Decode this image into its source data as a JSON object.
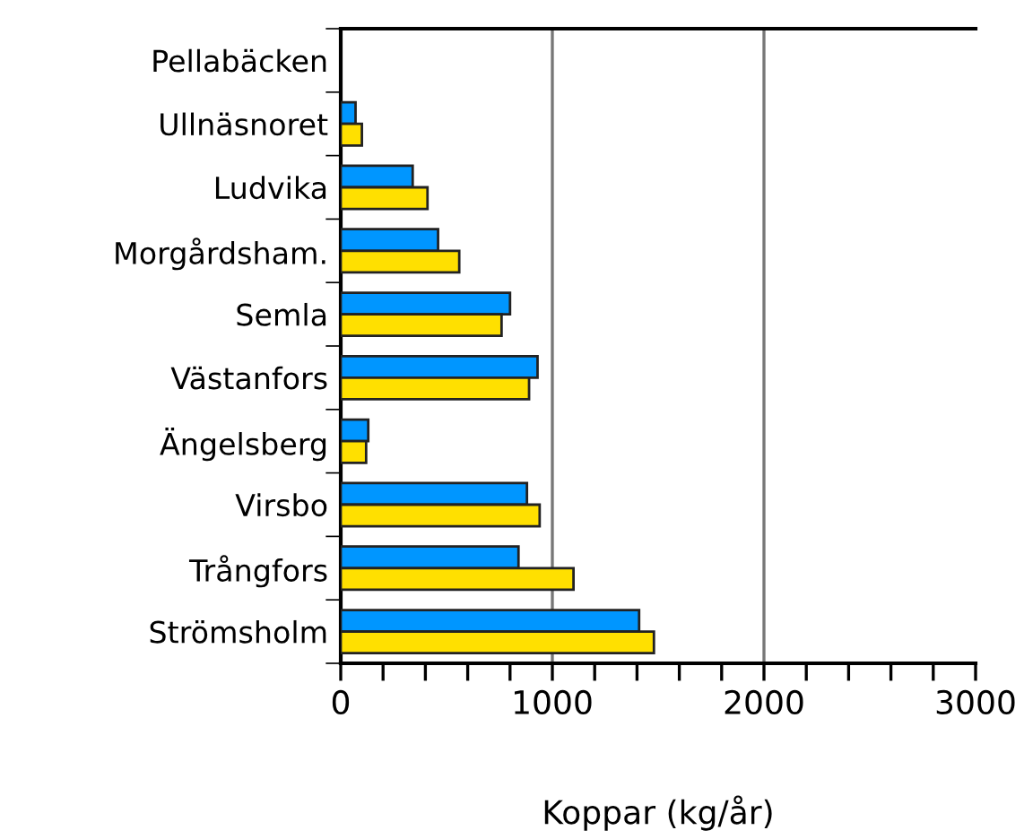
{
  "chart_data": {
    "type": "bar",
    "orientation": "horizontal",
    "xlabel": "Koppar (kg/år)",
    "categories": [
      "Pellabäcken",
      "Ullnäsnoret",
      "Ludvika",
      "Morgårdsham.",
      "Semla",
      "Västanfors",
      "Ängelsberg",
      "Virsbo",
      "Trångfors",
      "Strömsholm"
    ],
    "series": [
      {
        "color": "#0096ff",
        "values": [
          null,
          70,
          340,
          460,
          800,
          930,
          130,
          880,
          840,
          1410
        ]
      },
      {
        "color": "#ffe000",
        "values": [
          null,
          100,
          410,
          560,
          760,
          890,
          120,
          940,
          1100,
          1480
        ]
      }
    ],
    "xlim": [
      0,
      3000
    ],
    "xticks": [
      0,
      {
        "value": 200,
        "label": null
      },
      {
        "value": 400,
        "label": null
      },
      {
        "value": 600,
        "label": null
      },
      {
        "value": 800,
        "label": null
      },
      1000,
      {
        "value": 1200,
        "label": null
      },
      {
        "value": 1400,
        "label": null
      },
      {
        "value": 1600,
        "label": null
      },
      {
        "value": 1800,
        "label": null
      },
      2000,
      {
        "value": 2200,
        "label": null
      },
      {
        "value": 2400,
        "label": null
      },
      {
        "value": 2600,
        "label": null
      },
      {
        "value": 2800,
        "label": null
      },
      3000
    ],
    "grid": "x",
    "legend": false
  }
}
